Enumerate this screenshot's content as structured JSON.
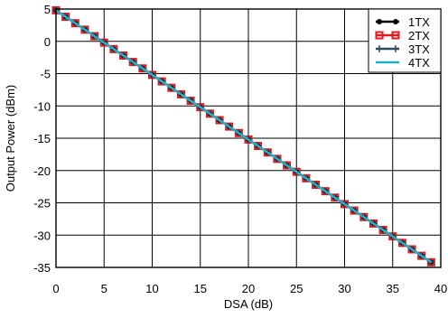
{
  "chart_data": {
    "type": "line",
    "title": "",
    "xlabel": "DSA (dB)",
    "ylabel": "Output Power (dBm)",
    "xlim": [
      0,
      40
    ],
    "ylim": [
      -35,
      5
    ],
    "xticks": [
      0,
      5,
      10,
      15,
      20,
      25,
      30,
      35,
      40
    ],
    "yticks": [
      5,
      0,
      -5,
      -10,
      -15,
      -20,
      -25,
      -30,
      -35
    ],
    "grid": true,
    "legend_position": "top-right",
    "x": [
      0,
      1,
      2,
      3,
      4,
      5,
      6,
      7,
      8,
      9,
      10,
      11,
      12,
      13,
      14,
      15,
      16,
      17,
      18,
      19,
      20,
      21,
      22,
      23,
      24,
      25,
      26,
      27,
      28,
      29,
      30,
      31,
      32,
      33,
      34,
      35,
      36,
      37,
      38,
      39
    ],
    "series": [
      {
        "name": "1TX",
        "color": "#000000",
        "marker": "filled-circle",
        "values": [
          4.8,
          3.8,
          2.8,
          1.8,
          0.8,
          -0.2,
          -1.2,
          -2.2,
          -3.2,
          -4.2,
          -5.2,
          -6.2,
          -7.2,
          -8.2,
          -9.2,
          -10.2,
          -11.2,
          -12.2,
          -13.2,
          -14.2,
          -15.2,
          -16.2,
          -17.2,
          -18.2,
          -19.2,
          -20.2,
          -21.2,
          -22.2,
          -23.2,
          -24.2,
          -25.2,
          -26.2,
          -27.2,
          -28.2,
          -29.2,
          -30.2,
          -31.2,
          -32.2,
          -33.2,
          -34.2
        ]
      },
      {
        "name": "2TX",
        "color": "#e0191e",
        "marker": "open-square",
        "values": [
          4.8,
          3.8,
          2.8,
          1.8,
          0.8,
          -0.2,
          -1.2,
          -2.2,
          -3.2,
          -4.2,
          -5.2,
          -6.2,
          -7.2,
          -8.2,
          -9.2,
          -10.2,
          -11.2,
          -12.2,
          -13.2,
          -14.2,
          -15.2,
          -16.2,
          -17.2,
          -18.2,
          -19.2,
          -20.2,
          -21.2,
          -22.2,
          -23.2,
          -24.2,
          -25.2,
          -26.2,
          -27.2,
          -28.2,
          -29.2,
          -30.2,
          -31.2,
          -32.2,
          -33.2,
          -34.2
        ]
      },
      {
        "name": "3TX",
        "color": "#2e4a5e",
        "marker": "plus",
        "values": [
          4.8,
          3.8,
          2.8,
          1.8,
          0.8,
          -0.2,
          -1.2,
          -2.2,
          -3.2,
          -4.2,
          -5.2,
          -6.2,
          -7.2,
          -8.2,
          -9.2,
          -10.2,
          -11.2,
          -12.2,
          -13.2,
          -14.2,
          -15.2,
          -16.2,
          -17.2,
          -18.2,
          -19.2,
          -20.2,
          -21.2,
          -22.2,
          -23.2,
          -24.2,
          -25.2,
          -26.2,
          -27.2,
          -28.2,
          -29.2,
          -30.2,
          -31.2,
          -32.2,
          -33.2,
          -34.2
        ]
      },
      {
        "name": "4TX",
        "color": "#20b0c8",
        "marker": "none",
        "values": [
          4.8,
          3.8,
          2.8,
          1.8,
          0.8,
          -0.2,
          -1.2,
          -2.2,
          -3.2,
          -4.2,
          -5.2,
          -6.2,
          -7.2,
          -8.2,
          -9.2,
          -10.2,
          -11.2,
          -12.2,
          -13.2,
          -14.2,
          -15.2,
          -16.2,
          -17.2,
          -18.2,
          -19.2,
          -20.2,
          -21.2,
          -22.2,
          -23.2,
          -24.2,
          -25.2,
          -26.2,
          -27.2,
          -28.2,
          -29.2,
          -30.2,
          -31.2,
          -32.2,
          -33.2,
          -34.2
        ]
      }
    ]
  }
}
